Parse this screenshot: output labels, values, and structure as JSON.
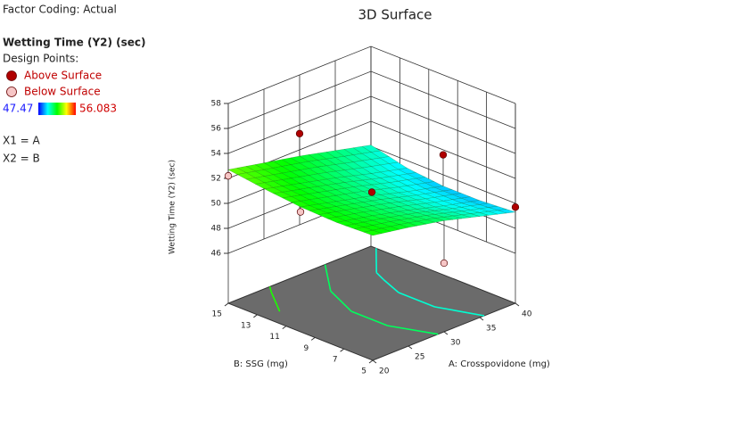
{
  "chart_data": {
    "type": "surface3d",
    "title": "3D Surface",
    "factor_coding": "Factor Coding: Actual",
    "response": "Wetting Time (Y2) (sec)",
    "design_points_label": "Design Points:",
    "legend": {
      "entries": [
        {
          "label": "Above Surface",
          "color": "#b00000"
        },
        {
          "label": "Below Surface",
          "color": "#f6c6c6"
        }
      ]
    },
    "color_min": 47.47,
    "color_max": 56.083,
    "colormap": [
      "#0000ff",
      "#00ffff",
      "#00ff00",
      "#ffff00",
      "#ff0000"
    ],
    "factors": [
      "X1 = A",
      "X2 = B"
    ],
    "x_label": "A: Crosspovidone (mg)",
    "y_label": "B: SSG (mg)",
    "z_label": "Wetting Time (Y2) (sec)",
    "xlim": [
      20,
      40
    ],
    "ylim": [
      5,
      15
    ],
    "zlim": [
      46,
      58
    ],
    "xticks": [
      20,
      25,
      30,
      35,
      40
    ],
    "yticks": [
      5,
      7,
      9,
      11,
      13,
      15
    ],
    "zticks": [
      46,
      48,
      50,
      52,
      54,
      56,
      58
    ],
    "surface": {
      "a": [
        20,
        25,
        30,
        35,
        40
      ],
      "b": [
        5,
        7.5,
        10,
        12.5,
        15
      ],
      "z": [
        [
          52.0,
          51.9,
          52.0,
          52.3,
          52.7
        ],
        [
          51.5,
          51.3,
          51.3,
          51.6,
          52.1
        ],
        [
          50.9,
          50.6,
          50.6,
          50.9,
          51.5
        ],
        [
          50.1,
          49.8,
          49.8,
          50.1,
          50.8
        ],
        [
          49.3,
          49.1,
          49.1,
          49.4,
          50.1
        ]
      ]
    },
    "contour_levels": [
      50,
      51,
      52
    ],
    "points": [
      {
        "a": 20,
        "b": 15,
        "z": 52.2,
        "legend": 1
      },
      {
        "a": 20,
        "b": 10,
        "z": 51.6,
        "legend": 1
      },
      {
        "a": 30,
        "b": 15,
        "z": 53.3,
        "legend": 0
      },
      {
        "a": 40,
        "b": 10,
        "z": 51.6,
        "legend": 0
      },
      {
        "a": 30,
        "b": 10,
        "z": 50.9,
        "legend": 0
      },
      {
        "a": 40,
        "b": 5,
        "z": 49.7,
        "legend": 0
      },
      {
        "a": 30,
        "b": 5,
        "z": 47.5,
        "legend": 1
      }
    ]
  }
}
